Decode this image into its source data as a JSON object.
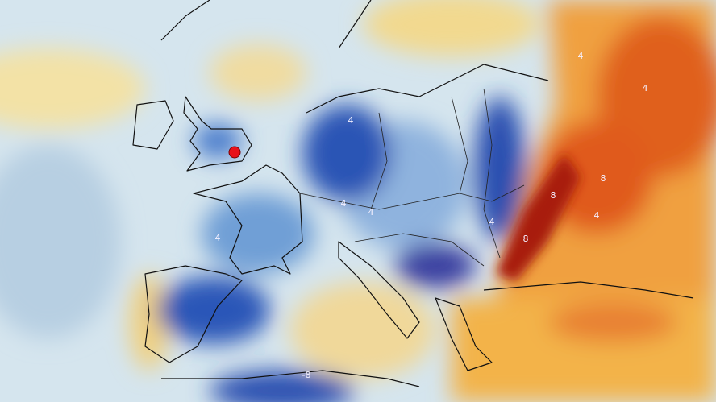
{
  "contour_labels": [
    "4",
    "4",
    "4",
    "4",
    "4",
    "8",
    "8",
    "-8",
    "4",
    "4",
    "8",
    "4"
  ]
}
